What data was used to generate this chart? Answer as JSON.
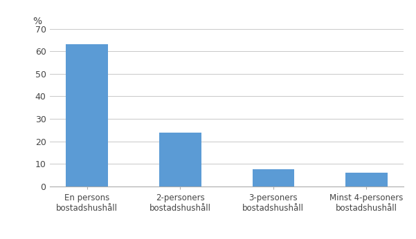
{
  "categories": [
    "En persons\nbostadshushåll",
    "2-personers\nbostadshushåll",
    "3-personers\nbostadshushåll",
    "Minst 4-personers\nbostadshushåll"
  ],
  "values": [
    63,
    24,
    7.5,
    6
  ],
  "bar_color": "#5b9bd5",
  "ylabel": "%",
  "ylim": [
    0,
    70
  ],
  "yticks": [
    0,
    10,
    20,
    30,
    40,
    50,
    60,
    70
  ],
  "background_color": "#ffffff",
  "grid_color": "#c8c8c8",
  "bar_width": 0.45,
  "tick_fontsize": 9,
  "xlabel_fontsize": 8.5
}
